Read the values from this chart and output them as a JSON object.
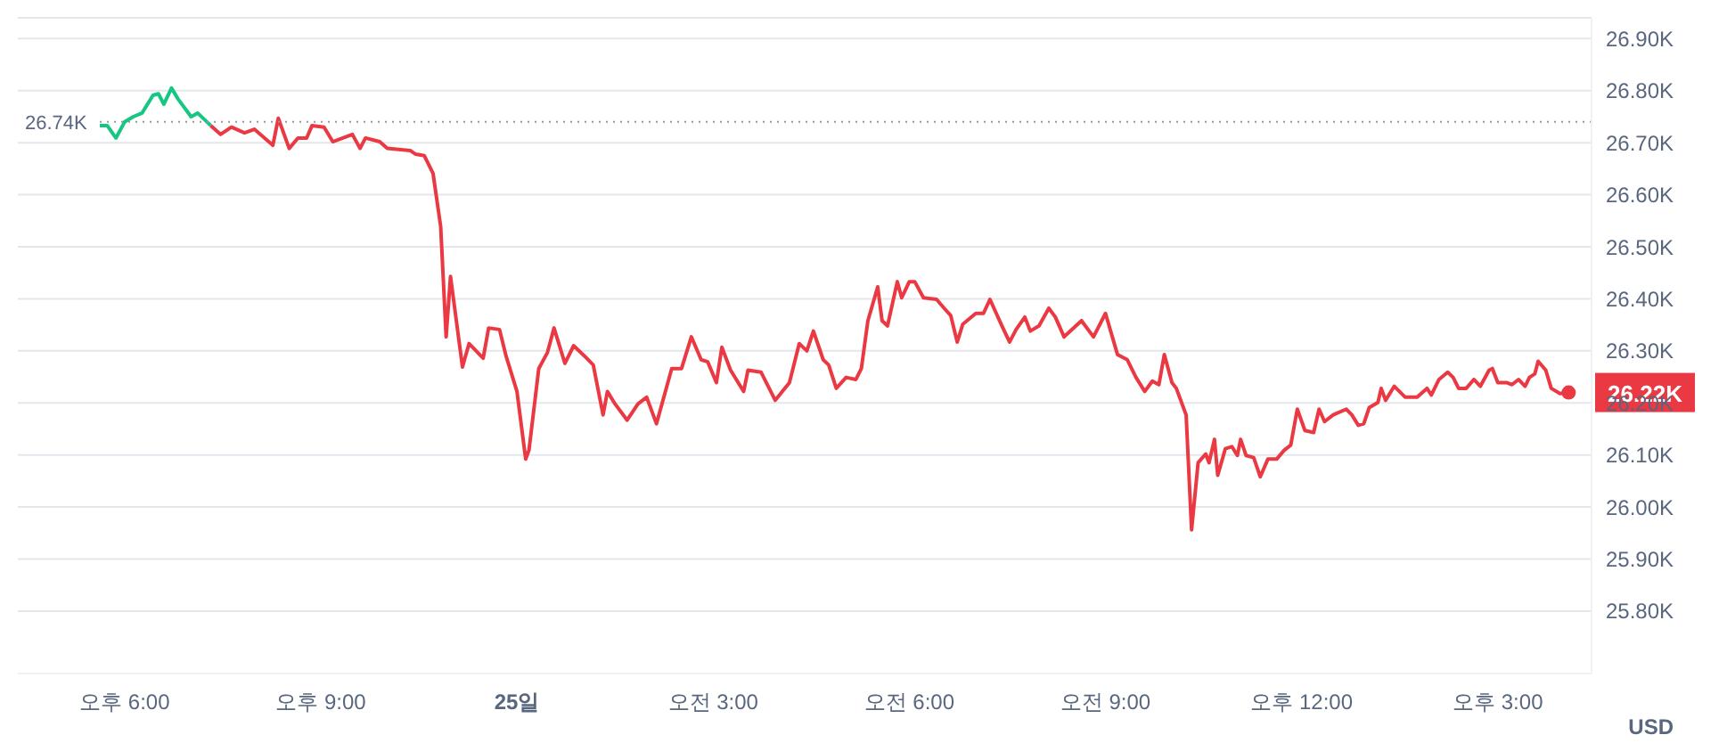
{
  "chart_data": {
    "type": "line",
    "ylabel": "USD",
    "xlim": [
      "--09-24T16:22",
      "--09-25T16:26"
    ],
    "ylim": [
      25.68,
      26.94
    ],
    "xticks": [
      {
        "value": "--09-24T18:00",
        "label": "오후 6:00"
      },
      {
        "value": "--09-24T21:00",
        "label": "오후 9:00"
      },
      {
        "value": "--09-25T00:00",
        "label": "25일"
      },
      {
        "value": "--09-25T03:00",
        "label": "오전 3:00"
      },
      {
        "value": "--09-25T06:00",
        "label": "오전 6:00"
      },
      {
        "value": "--09-25T09:00",
        "label": "오전 9:00"
      },
      {
        "value": "--09-25T12:00",
        "label": "오후 12:00"
      },
      {
        "value": "--09-25T15:00",
        "label": "오후 3:00"
      }
    ],
    "yticks": [
      {
        "value": 25.8,
        "label": "25.80K"
      },
      {
        "value": 25.9,
        "label": "25.90K"
      },
      {
        "value": 26.0,
        "label": "26.00K"
      },
      {
        "value": 26.1,
        "label": "26.10K"
      },
      {
        "value": 26.2,
        "label": "26.20K"
      },
      {
        "value": 26.3,
        "label": "26.30K"
      },
      {
        "value": 26.4,
        "label": "26.40K"
      },
      {
        "value": 26.5,
        "label": "26.50K"
      },
      {
        "value": 26.6,
        "label": "26.60K"
      },
      {
        "value": 26.7,
        "label": "26.70K"
      },
      {
        "value": 26.8,
        "label": "26.80K"
      },
      {
        "value": 26.9,
        "label": "26.90K"
      }
    ],
    "grid": "y",
    "marker": "none",
    "line_style": "solid",
    "ref_lines": [
      {
        "axis": "y",
        "value": 26.74,
        "label": "26.74K",
        "color": "#999999",
        "line_style": "dotted"
      }
    ],
    "annotations": [
      {
        "text": "26.22K",
        "x": "--09-25T16:05",
        "y": 26.22
      }
    ],
    "series": [
      {
        "color": "#16c784",
        "x": [
          "--09-24T17:35",
          "--09-24T17:44",
          "--09-24T17:52",
          "--09-24T18:00",
          "--09-24T18:08",
          "--09-24T18:16",
          "--09-24T18:26",
          "--09-24T18:31",
          "--09-24T18:36",
          "--09-24T18:43",
          "--09-24T18:49",
          "--09-24T19:01",
          "--09-24T19:07",
          "--09-24T19:19"
        ],
        "values": [
          26.733,
          26.733,
          26.709,
          26.74,
          26.75,
          26.757,
          26.791,
          26.794,
          26.774,
          26.805,
          26.784,
          26.75,
          26.757,
          26.733
        ]
      },
      {
        "color": "#ea3943",
        "x": [
          "--09-24T19:19",
          "--09-24T19:28",
          "--09-24T19:38",
          "--09-24T19:50",
          "--09-24T19:59",
          "--09-24T20:16",
          "--09-24T20:21",
          "--09-24T20:31",
          "--09-24T20:39",
          "--09-24T20:47",
          "--09-24T20:52",
          "--09-24T21:03",
          "--09-24T21:11",
          "--09-24T21:29",
          "--09-24T21:36",
          "--09-24T21:41",
          "--09-24T21:54",
          "--09-24T22:01",
          "--09-24T22:22",
          "--09-24T22:27",
          "--09-24T22:35",
          "--09-24T22:43",
          "--09-24T22:50",
          "--09-24T22:55",
          "--09-24T22:59",
          "--09-24T23:10",
          "--09-24T23:16",
          "--09-24T23:29",
          "--09-24T23:34",
          "--09-24T23:44",
          "--09-24T23:50",
          "--09-25T00:00",
          "--09-25T00:08",
          "--09-25T00:11",
          "--09-25T00:20",
          "--09-25T00:28",
          "--09-25T00:34",
          "--09-25T00:44",
          "--09-25T00:52",
          "--09-25T01:02",
          "--09-25T01:10",
          "--09-25T01:19",
          "--09-25T01:23",
          "--09-25T01:30",
          "--09-25T01:41",
          "--09-25T01:51",
          "--09-25T01:59",
          "--09-25T02:08",
          "--09-25T02:22",
          "--09-25T02:31",
          "--09-25T02:40",
          "--09-25T02:49",
          "--09-25T02:55",
          "--09-25T03:03",
          "--09-25T03:08",
          "--09-25T03:16",
          "--09-25T03:28",
          "--09-25T03:32",
          "--09-25T03:44",
          "--09-25T03:57",
          "--09-25T04:10",
          "--09-25T04:19",
          "--09-25T04:26",
          "--09-25T04:32",
          "--09-25T04:41",
          "--09-25T04:46",
          "--09-25T04:53",
          "--09-25T05:02",
          "--09-25T05:11",
          "--09-25T05:16",
          "--09-25T05:22",
          "--09-25T05:31",
          "--09-25T05:35",
          "--09-25T05:40",
          "--09-25T05:49",
          "--09-25T05:53",
          "--09-25T06:00",
          "--09-25T06:05",
          "--09-25T06:13",
          "--09-25T06:25",
          "--09-25T06:32",
          "--09-25T06:38",
          "--09-25T06:44",
          "--09-25T06:49",
          "--09-25T07:01",
          "--09-25T07:08",
          "--09-25T07:14",
          "--09-25T07:25",
          "--09-25T07:32",
          "--09-25T07:38",
          "--09-25T07:46",
          "--09-25T07:51",
          "--09-25T07:59",
          "--09-25T08:08",
          "--09-25T08:14",
          "--09-25T08:22",
          "--09-25T08:38",
          "--09-25T08:49",
          "--09-25T09:00",
          "--09-25T09:11",
          "--09-25T09:20",
          "--09-25T09:28",
          "--09-25T09:36",
          "--09-25T09:43",
          "--09-25T09:49",
          "--09-25T09:54",
          "--09-25T10:01",
          "--09-25T10:05",
          "--09-25T10:14",
          "--09-25T10:19",
          "--09-25T10:25",
          "--09-25T10:32",
          "--09-25T10:35",
          "--09-25T10:40",
          "--09-25T10:43",
          "--09-25T10:50",
          "--09-25T10:56",
          "--09-25T11:01",
          "--09-25T11:04",
          "--09-25T11:09",
          "--09-25T11:16",
          "--09-25T11:22",
          "--09-25T11:29",
          "--09-25T11:37",
          "--09-25T11:44",
          "--09-25T11:50",
          "--09-25T11:56",
          "--09-25T12:03",
          "--09-25T12:11",
          "--09-25T12:16",
          "--09-25T12:21",
          "--09-25T12:29",
          "--09-25T12:41",
          "--09-25T12:46",
          "--09-25T12:52",
          "--09-25T12:57",
          "--09-25T13:02",
          "--09-25T13:10",
          "--09-25T13:13",
          "--09-25T13:17",
          "--09-25T13:25",
          "--09-25T13:35",
          "--09-25T13:46",
          "--09-25T13:55",
          "--09-25T13:59",
          "--09-25T14:06",
          "--09-25T14:14",
          "--09-25T14:19",
          "--09-25T14:24",
          "--09-25T14:31",
          "--09-25T14:38",
          "--09-25T14:44",
          "--09-25T14:52",
          "--09-25T14:55",
          "--09-25T15:00",
          "--09-25T15:08",
          "--09-25T15:13",
          "--09-25T15:19",
          "--09-25T15:25",
          "--09-25T15:29",
          "--09-25T15:34",
          "--09-25T15:37",
          "--09-25T15:44",
          "--09-25T15:49",
          "--09-25T15:57",
          "--09-25T16:05"
        ],
        "values": [
          26.733,
          26.716,
          26.73,
          26.719,
          26.726,
          26.695,
          26.747,
          26.689,
          26.709,
          26.709,
          26.733,
          26.73,
          26.702,
          26.716,
          26.689,
          26.709,
          26.702,
          26.689,
          26.685,
          26.678,
          26.675,
          26.641,
          26.539,
          26.327,
          26.443,
          26.269,
          26.314,
          26.286,
          26.344,
          26.341,
          26.29,
          26.222,
          26.092,
          26.109,
          26.266,
          26.297,
          26.344,
          26.276,
          26.31,
          26.29,
          26.273,
          26.177,
          26.222,
          26.198,
          26.167,
          26.198,
          26.211,
          26.16,
          26.266,
          26.266,
          26.327,
          26.283,
          26.279,
          26.239,
          26.307,
          26.263,
          26.222,
          26.263,
          26.259,
          26.205,
          26.239,
          26.314,
          26.3,
          26.338,
          26.283,
          26.273,
          26.228,
          26.249,
          26.245,
          26.266,
          26.358,
          26.423,
          26.358,
          26.348,
          26.433,
          26.402,
          26.433,
          26.433,
          26.402,
          26.399,
          26.382,
          26.368,
          26.317,
          26.351,
          26.372,
          26.372,
          26.399,
          26.348,
          26.317,
          26.341,
          26.365,
          26.338,
          26.348,
          26.382,
          26.365,
          26.327,
          26.358,
          26.327,
          26.372,
          26.293,
          26.283,
          26.249,
          26.222,
          26.242,
          26.235,
          26.293,
          26.239,
          26.228,
          26.177,
          25.956,
          26.085,
          26.102,
          26.085,
          26.13,
          26.061,
          26.112,
          26.116,
          26.099,
          26.13,
          26.099,
          26.095,
          26.058,
          26.092,
          26.092,
          26.109,
          26.119,
          26.188,
          26.147,
          26.143,
          26.188,
          26.164,
          26.177,
          26.188,
          26.177,
          26.157,
          26.16,
          26.191,
          26.201,
          26.228,
          26.205,
          26.232,
          26.211,
          26.211,
          26.228,
          26.215,
          26.245,
          26.259,
          26.249,
          26.228,
          26.228,
          26.245,
          26.232,
          26.263,
          26.266,
          26.239,
          26.239,
          26.235,
          26.245,
          26.232,
          26.249,
          26.256,
          26.28,
          26.263,
          26.228,
          26.218,
          26.22
        ]
      }
    ]
  }
}
